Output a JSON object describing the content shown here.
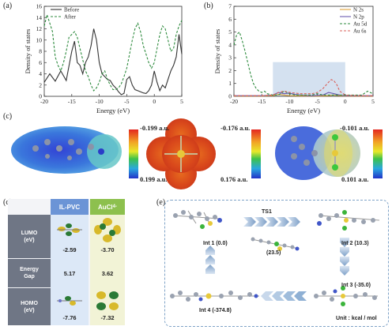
{
  "panels": {
    "a": {
      "label": "(a)"
    },
    "b": {
      "label": "(b)"
    },
    "c": {
      "label": "(c)"
    },
    "d": {
      "label": "(d)"
    },
    "e": {
      "label": "(e)"
    }
  },
  "chart_data": [
    {
      "type": "line",
      "panel": "a",
      "xlabel": "Energy (eV)",
      "ylabel": "Density of states",
      "xlim": [
        -20,
        5
      ],
      "ylim": [
        0,
        16
      ],
      "xticks": [
        "-20",
        "-15",
        "-10",
        "-5",
        "0",
        "5"
      ],
      "yticks": [
        "0",
        "2",
        "4",
        "6",
        "8",
        "10",
        "12",
        "14",
        "16"
      ],
      "legend": "top-left",
      "series": [
        {
          "name": "Before",
          "style": "solid",
          "color": "#333333",
          "x": [
            -20,
            -19,
            -18,
            -17,
            -16,
            -15,
            -14.5,
            -14,
            -13.5,
            -13,
            -12.5,
            -12,
            -11.5,
            -11,
            -10.5,
            -10,
            -9.5,
            -9,
            -8.5,
            -8,
            -7.5,
            -7,
            -6.5,
            -6,
            -5.5,
            -5,
            -4.5,
            -4,
            -3.5,
            -3,
            -2.5,
            -2,
            -1.5,
            -1,
            -0.5,
            0,
            0.5,
            1,
            1.5,
            2,
            2.5,
            3,
            3.5,
            4,
            4.5,
            5
          ],
          "y": [
            2.5,
            4.0,
            2.7,
            4.5,
            2.8,
            8.0,
            9.8,
            6.0,
            5.5,
            4.0,
            6.0,
            7.0,
            9.0,
            12.0,
            10.0,
            6.0,
            4.0,
            3.5,
            3.0,
            2.8,
            2.0,
            1.5,
            0.8,
            0.3,
            0.5,
            3.0,
            3.5,
            2.0,
            1.2,
            1.0,
            0.8,
            0.6,
            0.5,
            1.0,
            2.0,
            4.5,
            2.5,
            1.0,
            2.0,
            1.5,
            3.0,
            4.5,
            5.5,
            7.0,
            11.0,
            7.5
          ]
        },
        {
          "name": "After",
          "style": "dashed",
          "color": "#2e8b3e",
          "x": [
            -20,
            -19.5,
            -19,
            -18.5,
            -18,
            -17.5,
            -17,
            -16.5,
            -16,
            -15.5,
            -15,
            -14.5,
            -14,
            -13.5,
            -13,
            -12.5,
            -12,
            -11.5,
            -11,
            -10.5,
            -10,
            -9.5,
            -9,
            -8.5,
            -8,
            -7.5,
            -7,
            -6.5,
            -6,
            -5.5,
            -5,
            -4.5,
            -4,
            -3.5,
            -3,
            -2.5,
            -2,
            -1.5,
            -1,
            -0.5,
            0,
            0.5,
            1,
            1.5,
            2,
            2.5,
            3,
            3.5,
            4,
            4.5,
            5
          ],
          "y": [
            12.5,
            14.5,
            13.0,
            11.5,
            7.0,
            5.5,
            4.5,
            6.0,
            8.0,
            10.5,
            11.0,
            11.5,
            10.5,
            8.5,
            6.5,
            4.5,
            3.5,
            2.0,
            1.0,
            1.5,
            2.5,
            4.0,
            4.5,
            3.0,
            2.0,
            1.2,
            1.2,
            1.5,
            2.2,
            3.5,
            5.0,
            7.5,
            10.0,
            12.0,
            13.0,
            11.5,
            9.0,
            7.5,
            6.0,
            5.0,
            6.0,
            8.5,
            11.0,
            12.5,
            12.0,
            10.0,
            8.0,
            8.5,
            11.0,
            12.5,
            13.5
          ]
        }
      ]
    },
    {
      "type": "line",
      "panel": "b",
      "xlabel": "Energy (eV)",
      "ylabel": "Density of states",
      "xlim": [
        -20,
        5
      ],
      "ylim": [
        0,
        7
      ],
      "xticks": [
        "-20",
        "-15",
        "-10",
        "-5",
        "0",
        "5"
      ],
      "yticks": [
        "0",
        "1",
        "2",
        "3",
        "4",
        "5",
        "6",
        "7"
      ],
      "legend": "top-right",
      "highlight_x": [
        -13,
        0
      ],
      "series": [
        {
          "name": "N 2s",
          "style": "solid",
          "color": "#e0a23a",
          "x": [
            -20,
            -15,
            -13,
            -12,
            -11,
            -10,
            -8,
            -5,
            -3,
            -2,
            -1,
            0,
            2,
            5
          ],
          "y": [
            0.02,
            0.02,
            0.05,
            0.15,
            0.1,
            0.05,
            0.03,
            0.02,
            0.05,
            0.1,
            0.05,
            0.02,
            0.02,
            0.02
          ]
        },
        {
          "name": "N 2p",
          "style": "solid",
          "color": "#6b5bb0",
          "x": [
            -20,
            -15,
            -13,
            -12,
            -11,
            -10,
            -9,
            -8,
            -6,
            -4,
            -3,
            -2,
            -1,
            0,
            1,
            3,
            5
          ],
          "y": [
            0.05,
            0.05,
            0.1,
            0.3,
            0.2,
            0.25,
            0.15,
            0.1,
            0.05,
            0.1,
            0.3,
            0.2,
            0.1,
            0.05,
            0.05,
            0.05,
            0.05
          ]
        },
        {
          "name": "Au 5d",
          "style": "dashed",
          "color": "#2e8b3e",
          "x": [
            -20,
            -19.5,
            -19,
            -18.5,
            -18,
            -17.5,
            -17,
            -16.5,
            -16,
            -15.5,
            -15,
            -14.5,
            -14,
            -13,
            -12,
            -11,
            -10,
            -9,
            -8,
            -7,
            -6,
            -5,
            -4,
            -3,
            -2,
            -1,
            0,
            1,
            2,
            3,
            4,
            5
          ],
          "y": [
            4.0,
            4.8,
            5.0,
            4.3,
            3.5,
            2.6,
            1.7,
            1.0,
            0.6,
            0.4,
            0.3,
            0.4,
            0.2,
            0.1,
            0.1,
            0.4,
            0.2,
            0.1,
            0.1,
            0.1,
            0.1,
            0.2,
            0.1,
            0.1,
            0.1,
            0.1,
            0.1,
            0.1,
            0.1,
            0.1,
            0.4,
            0.2
          ]
        },
        {
          "name": "Au 6s",
          "style": "dashed",
          "color": "#d9605a",
          "x": [
            -20,
            -15,
            -13,
            -12,
            -11,
            -10,
            -8,
            -6,
            -5,
            -4,
            -3,
            -2.5,
            -2,
            -1.5,
            -1,
            0,
            2,
            5
          ],
          "y": [
            0.05,
            0.05,
            0.1,
            0.3,
            0.4,
            0.3,
            0.2,
            0.2,
            0.3,
            0.6,
            1.1,
            1.3,
            1.2,
            0.9,
            0.4,
            0.1,
            0.05,
            0.05
          ]
        }
      ]
    }
  ],
  "esp": {
    "map1": {
      "top": "-0.199 a.u.",
      "bottom": "0.199 a.u."
    },
    "map2": {
      "top": "-0.176 a.u.",
      "bottom": "0.176 a.u."
    },
    "map3": {
      "top": "-0.101 a.u.",
      "bottom": "0.101 a.u."
    }
  },
  "table": {
    "col1": "IL-PVC",
    "col2": "AuCl",
    "col2_sub": "4",
    "col2_sup": "-",
    "rows": [
      {
        "label1": "LUMO",
        "label2": "(eV)",
        "v1": "-2.59",
        "v2": "-3.70"
      },
      {
        "label1": "Energy",
        "label2": "Gap",
        "v1": "5.17",
        "v2": "3.62"
      },
      {
        "label1": "HOMO",
        "label2": "(eV)",
        "v1": "-7.76",
        "v2": "-7.32"
      }
    ]
  },
  "reaction": {
    "ts_label": "TS1",
    "ts_energy": "(23.5)",
    "int1": "Int 1 (0.0)",
    "int2": "Int 2 (10.3)",
    "int3": "Int 3 (-35.0)",
    "int4": "Int 4 (-374.8)",
    "unit": "Unit : kcal / mol"
  }
}
